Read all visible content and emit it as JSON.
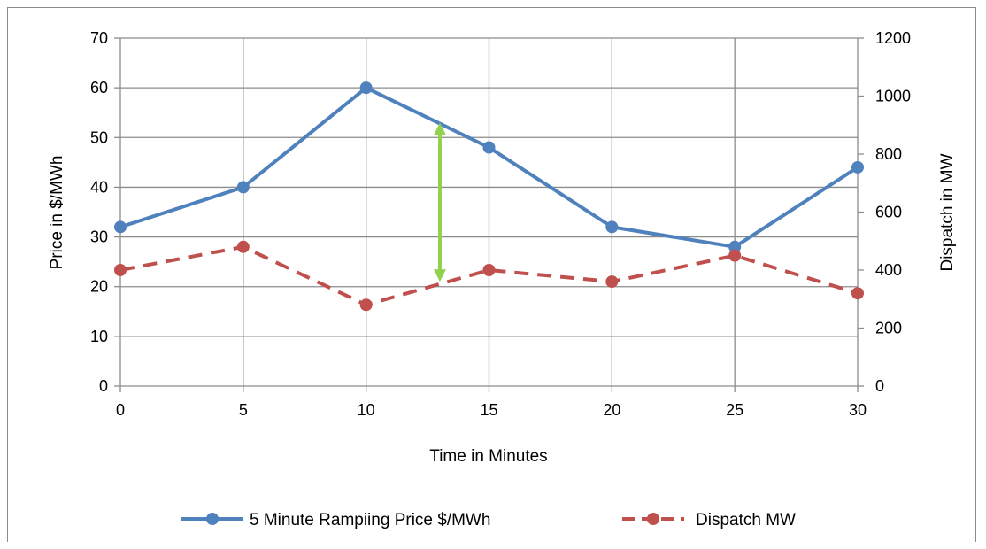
{
  "chart_data": {
    "type": "line",
    "x": [
      0,
      5,
      10,
      15,
      20,
      25,
      30
    ],
    "xlabel": "Time in Minutes",
    "ylabel": "Price in $/MWh",
    "y2label": "Dispatch in MW",
    "xlim": [
      0,
      30
    ],
    "ylim": [
      0,
      70
    ],
    "y2lim": [
      0,
      1200
    ],
    "x_ticks": [
      "0",
      "5",
      "10",
      "15",
      "20",
      "25",
      "30"
    ],
    "y_ticks": [
      "0",
      "10",
      "20",
      "30",
      "40",
      "50",
      "60",
      "70"
    ],
    "y2_ticks": [
      "0",
      "200",
      "400",
      "600",
      "800",
      "1000",
      "1200"
    ],
    "grid": true,
    "legend_position": "bottom",
    "series": [
      {
        "name": "5 Minute Rampiing Price $/MWh",
        "axis": "left",
        "color": "#4f81bd",
        "style": "solid",
        "values": [
          32,
          40,
          60,
          48,
          32,
          28,
          44
        ]
      },
      {
        "name": "Dispatch MW",
        "axis": "right",
        "color": "#c0504d",
        "style": "dashed",
        "values": [
          400,
          480,
          280,
          400,
          360,
          450,
          320
        ]
      }
    ],
    "annotation": {
      "type": "double-arrow",
      "color": "#92d050",
      "x": 13,
      "y_from": 21,
      "y_to": 53
    }
  }
}
